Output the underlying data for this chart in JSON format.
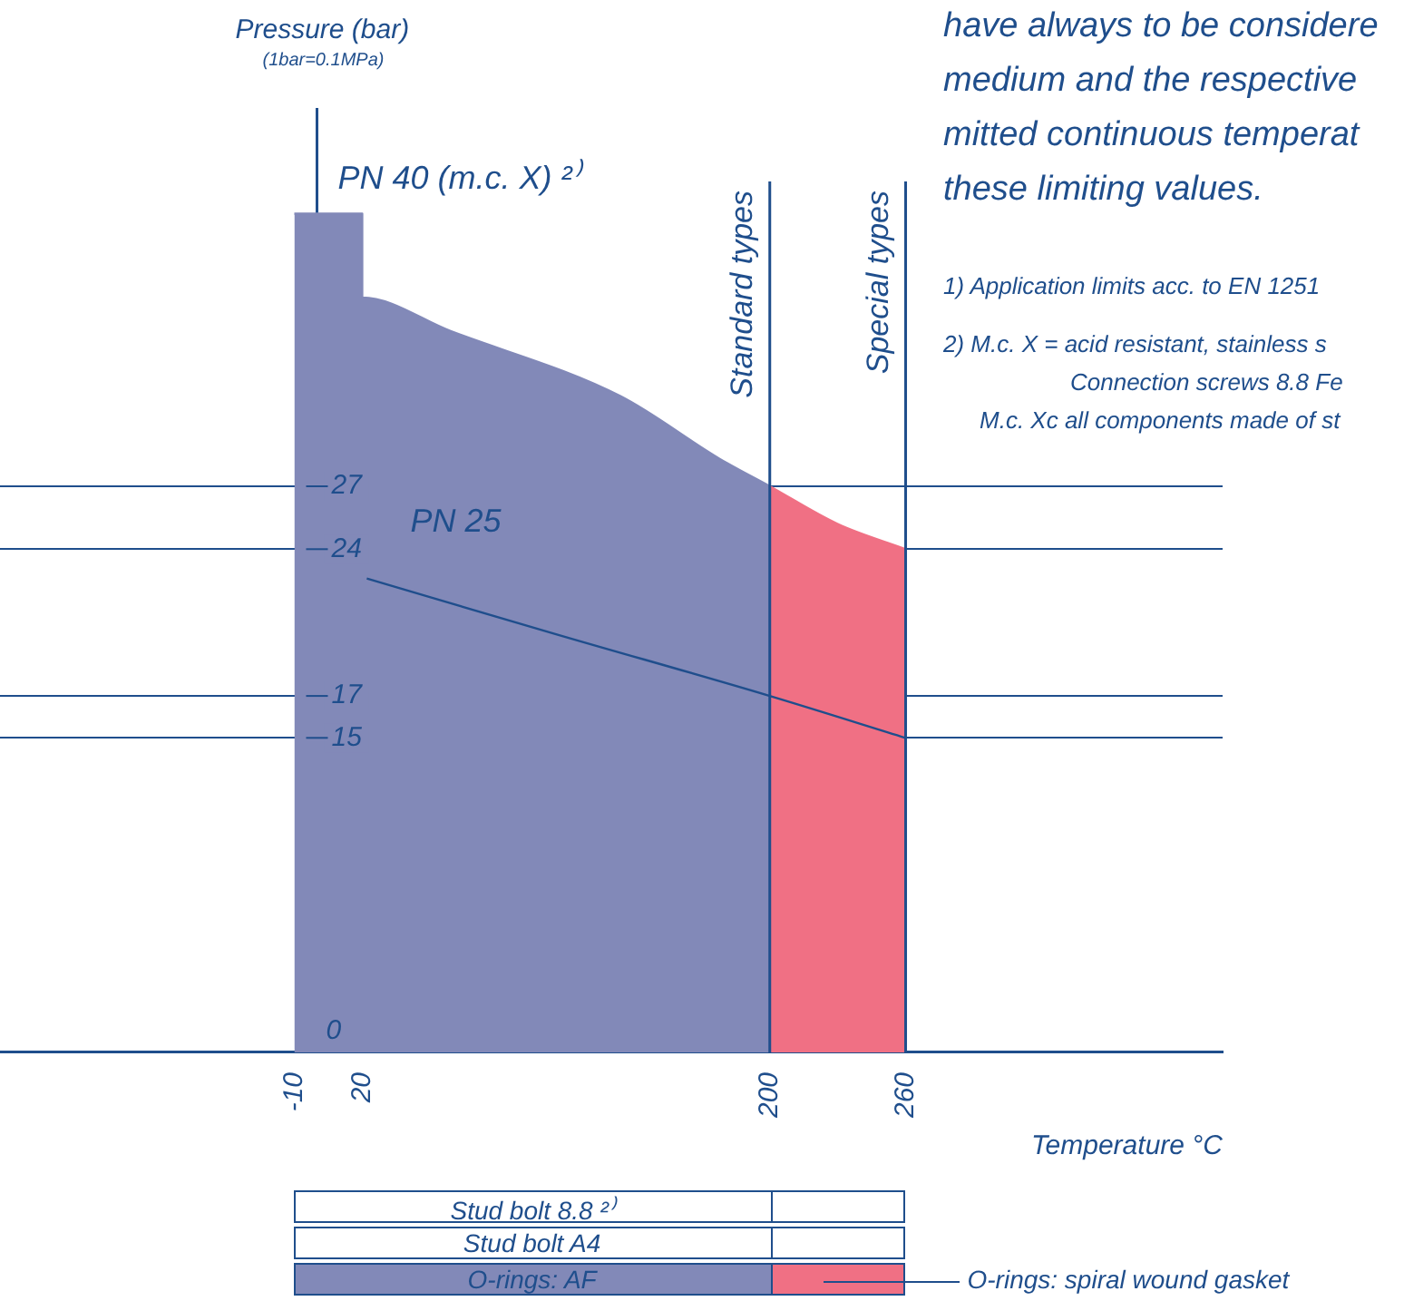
{
  "chart_data": {
    "type": "area",
    "ylabel": "Pressure (bar)",
    "xlabel": "Temperature °C",
    "xlim": [
      -140,
      400
    ],
    "ylim": [
      0,
      45
    ],
    "xticks": [
      -10,
      20,
      200,
      260
    ],
    "yticks": [
      0,
      15,
      17,
      24,
      27
    ],
    "grid": "y",
    "legend": false,
    "marker": "none",
    "series": [
      {
        "name": "PN 40 (m.c. X) ²⁾",
        "color": "#8289b8",
        "x": [
          -10,
          20,
          20,
          59,
          134,
          178,
          200
        ],
        "values": [
          40,
          40,
          36,
          34.4,
          31.3,
          28.3,
          27
        ]
      },
      {
        "color": "#f07084",
        "x": [
          200,
          230,
          260
        ],
        "values": [
          27,
          25.2,
          24
        ]
      },
      {
        "name": "PN 25",
        "type": "line",
        "color": "#1f4e8c",
        "x": [
          22,
          107,
          200,
          260
        ],
        "values": [
          22.6,
          19.9,
          17,
          15
        ]
      }
    ],
    "ref_lines": [
      {
        "axis": "x",
        "value": 200,
        "label": "Standard types"
      },
      {
        "axis": "x",
        "value": 260,
        "label": "Special types"
      }
    ],
    "annotations": [
      "(1bar=0.1MPa)",
      "have always to be considere",
      "medium and the respective",
      "mitted continuous temperat",
      "these limiting values.",
      "1) Application limits acc. to EN 1251",
      "2) M.c. X = acid resistant, stainless s",
      "Connection screws 8.8 Fe",
      "M.c. Xc all components made of st",
      "Stud bolt 8.8 ²⁾",
      "Stud bolt A4",
      "O-rings: AF",
      "O-rings: spiral wound gasket"
    ]
  }
}
